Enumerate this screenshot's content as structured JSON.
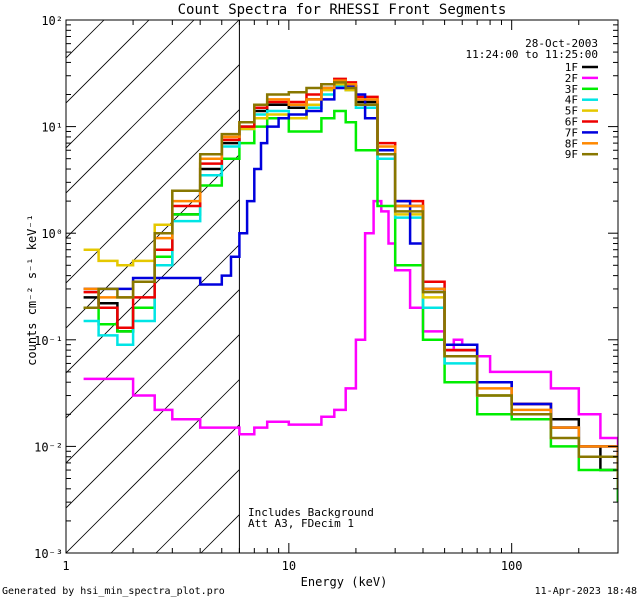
{
  "chart_data": {
    "type": "line",
    "title": "Count Spectra for RHESSI Front Segments",
    "xlabel": "Energy (keV)",
    "ylabel": "counts cm⁻² s⁻¹ keV⁻¹",
    "xscale": "log",
    "yscale": "log",
    "xlim": [
      1,
      300
    ],
    "ylim": [
      0.001,
      100
    ],
    "x_tick_labels": [
      {
        "value": 1,
        "label": "1"
      },
      {
        "value": 10,
        "label": "10"
      },
      {
        "value": 100,
        "label": "100"
      }
    ],
    "y_tick_labels": [
      {
        "value": 100,
        "label": "10²"
      },
      {
        "value": 10,
        "label": "10¹"
      },
      {
        "value": 1,
        "label": "10⁰"
      },
      {
        "value": 0.1,
        "label": "10⁻¹"
      },
      {
        "value": 0.01,
        "label": "10⁻²"
      },
      {
        "value": 0.001,
        "label": "10⁻³"
      }
    ],
    "date": "28-Oct-2003",
    "time_range": "11:24:00 to 11:25:00",
    "annotation_line1": "Includes Background",
    "annotation_line2": "Att A3, FDecim 1",
    "hatched_region_max_kev": 6,
    "footer_left": "Generated by hsi_min_spectra_plot.pro",
    "footer_right": "11-Apr-2023 18:48",
    "series": [
      {
        "name": "1F",
        "color": "#000000",
        "x": [
          1.2,
          1.4,
          1.7,
          2.0,
          2.5,
          3.0,
          4.0,
          5.0,
          6.0,
          7.0,
          8.0,
          10.0,
          12.0,
          14.0,
          16.0,
          18.0,
          20.0,
          25.0,
          30.0,
          40.0,
          50.0,
          70.0,
          100.0,
          150.0,
          200.0,
          250.0,
          300.0
        ],
        "y": [
          0.25,
          0.22,
          0.12,
          0.2,
          0.5,
          1.5,
          4.0,
          7.0,
          10.0,
          14.0,
          16.0,
          15.0,
          18.0,
          23.0,
          26.0,
          24.0,
          17.0,
          6.0,
          1.8,
          0.3,
          0.08,
          0.04,
          0.025,
          0.018,
          0.01,
          0.006,
          0.003
        ]
      },
      {
        "name": "2F",
        "color": "#ff00ff",
        "x": [
          1.2,
          1.5,
          2.0,
          2.5,
          3.0,
          4.0,
          5.0,
          6.0,
          7.0,
          8.0,
          9.0,
          10.0,
          12.0,
          14.0,
          16.0,
          18.0,
          20.0,
          22.0,
          24.0,
          26.0,
          28.0,
          30.0,
          35.0,
          40.0,
          50.0,
          55.0,
          60.0,
          70.0,
          80.0,
          100.0,
          150.0,
          200.0,
          250.0,
          300.0
        ],
        "y": [
          0.043,
          0.043,
          0.03,
          0.022,
          0.018,
          0.015,
          0.015,
          0.013,
          0.015,
          0.017,
          0.017,
          0.016,
          0.016,
          0.019,
          0.022,
          0.035,
          0.1,
          1.0,
          2.0,
          1.6,
          0.8,
          0.45,
          0.2,
          0.12,
          0.08,
          0.1,
          0.09,
          0.07,
          0.05,
          0.05,
          0.035,
          0.02,
          0.012,
          0.006
        ]
      },
      {
        "name": "3F",
        "color": "#00ee00",
        "x": [
          1.2,
          1.4,
          1.7,
          2.0,
          2.5,
          3.0,
          4.0,
          5.0,
          6.0,
          7.0,
          8.0,
          10.0,
          12.0,
          14.0,
          16.0,
          18.0,
          20.0,
          25.0,
          30.0,
          40.0,
          50.0,
          70.0,
          100.0,
          150.0,
          200.0,
          300.0
        ],
        "y": [
          0.2,
          0.14,
          0.12,
          0.2,
          0.6,
          1.5,
          2.8,
          5.0,
          7.0,
          10.0,
          12.0,
          9.0,
          9.0,
          12.0,
          14.0,
          11.0,
          6.0,
          1.8,
          0.5,
          0.1,
          0.04,
          0.02,
          0.018,
          0.01,
          0.006,
          0.003
        ]
      },
      {
        "name": "4F",
        "color": "#00e5e5",
        "x": [
          1.2,
          1.4,
          1.7,
          2.0,
          2.5,
          3.0,
          4.0,
          5.0,
          6.0,
          7.0,
          8.0,
          10.0,
          12.0,
          14.0,
          16.0,
          18.0,
          20.0,
          25.0,
          30.0,
          40.0,
          50.0,
          70.0,
          100.0,
          150.0,
          200.0,
          300.0
        ],
        "y": [
          0.15,
          0.11,
          0.09,
          0.15,
          0.5,
          1.3,
          3.5,
          6.5,
          9.5,
          13.0,
          14.0,
          12.0,
          15.0,
          20.0,
          24.0,
          22.0,
          15.0,
          5.0,
          1.4,
          0.2,
          0.06,
          0.03,
          0.02,
          0.015,
          0.008,
          0.004
        ]
      },
      {
        "name": "5F",
        "color": "#e5c800",
        "x": [
          1.2,
          1.4,
          1.7,
          2.0,
          2.5,
          3.0,
          4.0,
          5.0,
          6.0,
          7.0,
          8.0,
          10.0,
          12.0,
          14.0,
          16.0,
          18.0,
          20.0,
          25.0,
          30.0,
          40.0,
          50.0,
          70.0,
          100.0,
          150.0,
          200.0,
          300.0
        ],
        "y": [
          0.7,
          0.55,
          0.5,
          0.55,
          1.2,
          2.5,
          5.0,
          7.5,
          9.5,
          12.0,
          13.0,
          12.0,
          16.0,
          22.0,
          25.0,
          22.0,
          16.0,
          5.5,
          1.5,
          0.25,
          0.07,
          0.03,
          0.02,
          0.015,
          0.01,
          0.005
        ]
      },
      {
        "name": "6F",
        "color": "#ee0000",
        "x": [
          1.2,
          1.4,
          1.7,
          2.0,
          2.5,
          3.0,
          4.0,
          5.0,
          6.0,
          7.0,
          8.0,
          10.0,
          12.0,
          14.0,
          16.0,
          18.0,
          20.0,
          25.0,
          30.0,
          40.0,
          50.0,
          70.0,
          100.0,
          150.0,
          200.0,
          300.0
        ],
        "y": [
          0.28,
          0.2,
          0.13,
          0.25,
          0.7,
          1.8,
          4.5,
          7.5,
          10.0,
          15.0,
          17.0,
          17.0,
          20.0,
          25.0,
          28.0,
          26.0,
          19.0,
          7.0,
          2.0,
          0.35,
          0.08,
          0.04,
          0.025,
          0.015,
          0.01,
          0.005
        ]
      },
      {
        "name": "7F",
        "color": "#0000dd",
        "x": [
          1.2,
          1.5,
          2.0,
          2.5,
          3.0,
          4.0,
          5.0,
          5.5,
          6.0,
          6.5,
          7.0,
          7.5,
          8.0,
          9.0,
          10.0,
          12.0,
          14.0,
          16.0,
          18.0,
          20.0,
          22.0,
          25.0,
          30.0,
          35.0,
          40.0,
          50.0,
          70.0,
          100.0,
          150.0,
          200.0,
          300.0
        ],
        "y": [
          0.3,
          0.3,
          0.38,
          0.38,
          0.38,
          0.33,
          0.4,
          0.6,
          1.0,
          2.0,
          4.0,
          7.0,
          10.0,
          12.0,
          13.0,
          14.0,
          18.0,
          23.0,
          24.0,
          20.0,
          12.0,
          6.0,
          2.0,
          0.8,
          0.3,
          0.09,
          0.04,
          0.025,
          0.015,
          0.01,
          0.005
        ]
      },
      {
        "name": "8F",
        "color": "#ff8800",
        "x": [
          1.2,
          1.4,
          1.7,
          2.0,
          2.5,
          3.0,
          4.0,
          5.0,
          6.0,
          7.0,
          8.0,
          10.0,
          12.0,
          14.0,
          16.0,
          18.0,
          20.0,
          25.0,
          30.0,
          40.0,
          50.0,
          70.0,
          100.0,
          150.0,
          200.0,
          300.0
        ],
        "y": [
          0.3,
          0.25,
          0.25,
          0.35,
          0.9,
          2.0,
          5.0,
          8.0,
          11.0,
          16.0,
          18.0,
          16.0,
          18.0,
          23.0,
          27.0,
          25.0,
          18.0,
          6.5,
          1.8,
          0.3,
          0.07,
          0.035,
          0.022,
          0.015,
          0.01,
          0.005
        ]
      },
      {
        "name": "9F",
        "color": "#887700",
        "x": [
          1.2,
          1.4,
          1.7,
          2.0,
          2.5,
          3.0,
          4.0,
          5.0,
          6.0,
          7.0,
          8.0,
          10.0,
          12.0,
          14.0,
          16.0,
          18.0,
          20.0,
          25.0,
          30.0,
          40.0,
          50.0,
          70.0,
          100.0,
          150.0,
          200.0,
          300.0
        ],
        "y": [
          0.2,
          0.3,
          0.25,
          0.35,
          1.0,
          2.5,
          5.5,
          8.5,
          11.0,
          16.0,
          20.0,
          21.0,
          23.0,
          25.0,
          26.0,
          23.0,
          16.0,
          5.5,
          1.6,
          0.28,
          0.07,
          0.03,
          0.02,
          0.012,
          0.008,
          0.004
        ]
      }
    ]
  }
}
